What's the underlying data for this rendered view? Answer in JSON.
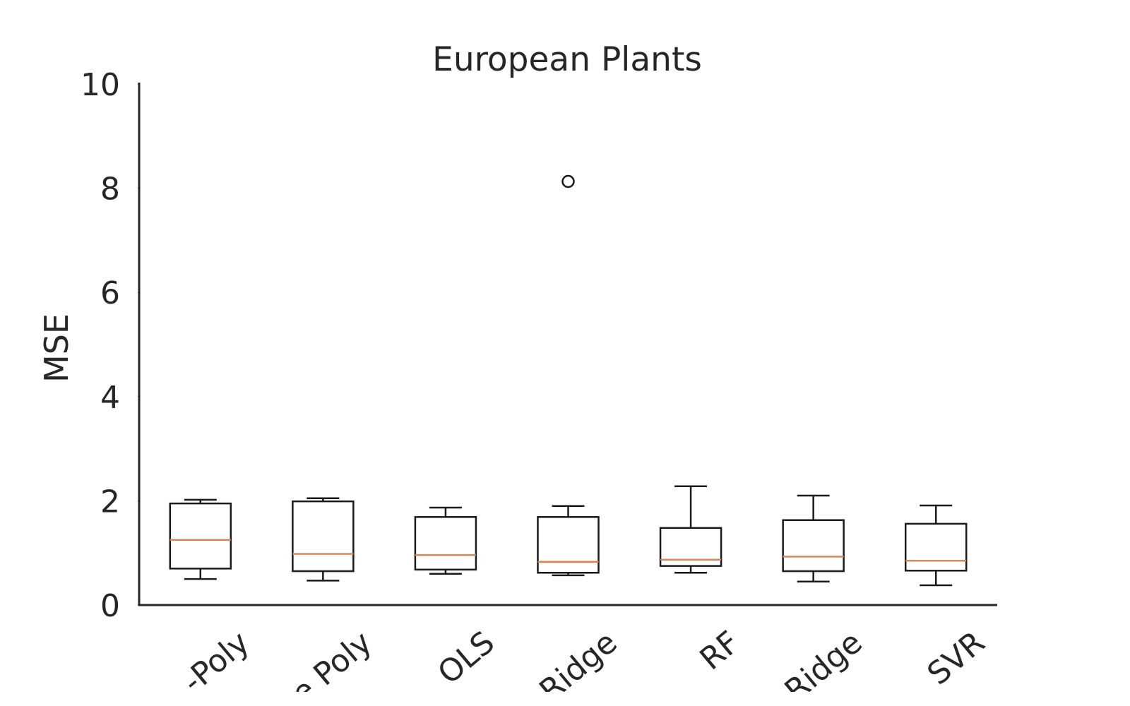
{
  "chart_data": {
    "type": "box",
    "title": "European Plants",
    "y_label": "MSE",
    "categories": [
      "-Poly",
      "e Poly",
      "OLS",
      "Ridge",
      "RF",
      "Ridge",
      "SVR"
    ],
    "whislo": [
      0.5,
      0.47,
      0.6,
      0.57,
      0.62,
      0.45,
      0.38
    ],
    "q1": [
      0.7,
      0.65,
      0.68,
      0.62,
      0.75,
      0.65,
      0.66
    ],
    "median": [
      1.25,
      0.98,
      0.96,
      0.83,
      0.87,
      0.93,
      0.85
    ],
    "q3": [
      1.95,
      1.99,
      1.69,
      1.69,
      1.48,
      1.63,
      1.56
    ],
    "whishi": [
      2.02,
      2.05,
      1.87,
      1.9,
      2.28,
      2.1,
      1.91
    ],
    "fliers": [
      [],
      [],
      [],
      [
        8.13
      ],
      [],
      [],
      []
    ],
    "box_color": "#1a1a1a",
    "median_color": "#dd8452",
    "ylim": [
      0,
      10
    ],
    "yticks": [
      0,
      2,
      4,
      6,
      8,
      10
    ]
  }
}
